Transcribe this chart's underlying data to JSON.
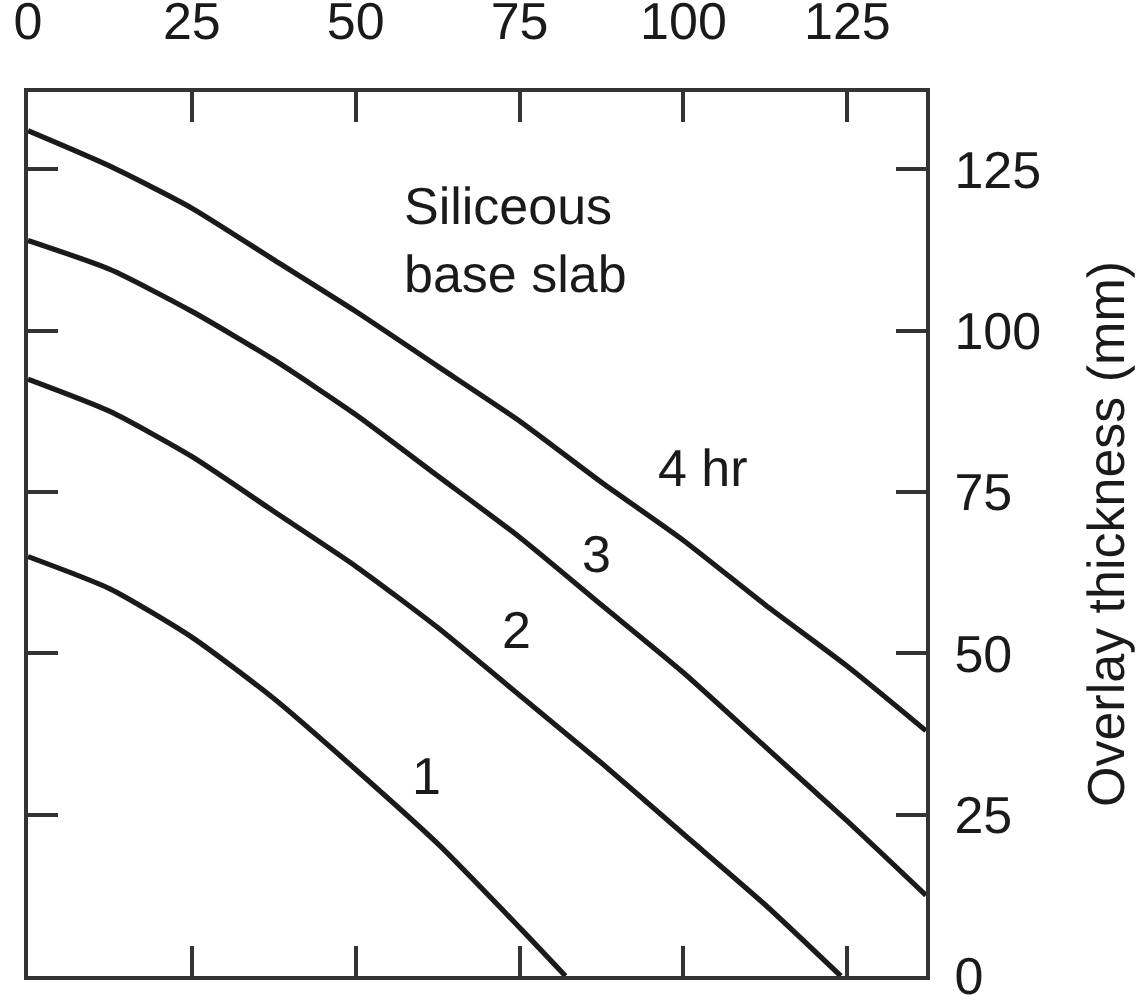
{
  "chart_data": {
    "type": "line",
    "ylabel": "Overlay thickness (mm)",
    "annotations": [
      "Siliceous\nbase slab"
    ],
    "xlim": [
      0,
      137
    ],
    "xticks": [
      0,
      25,
      50,
      75,
      100,
      125
    ],
    "ylim": [
      0,
      137
    ],
    "yticks": [
      0,
      25,
      50,
      75,
      100,
      125
    ],
    "series": [
      {
        "name": "1",
        "color": "#1a1a1a",
        "x": [
          0,
          12.5,
          25,
          37.5,
          50,
          62.5,
          75,
          82
        ],
        "values": [
          65,
          60,
          52.5,
          43,
          32,
          20.5,
          7.5,
          0
        ]
      },
      {
        "name": "2",
        "color": "#1a1a1a",
        "x": [
          0,
          12.5,
          25,
          37.5,
          50,
          62.5,
          75,
          87.5,
          100,
          112.5,
          124
        ],
        "values": [
          92.5,
          87.5,
          80.5,
          72,
          63.5,
          54,
          43.5,
          33,
          22,
          11,
          0
        ]
      },
      {
        "name": "3",
        "color": "#1a1a1a",
        "x": [
          0,
          12.5,
          25,
          37.5,
          50,
          62.5,
          75,
          87.5,
          100,
          112.5,
          125,
          137
        ],
        "values": [
          114,
          109.5,
          103,
          95.5,
          87,
          77.5,
          68,
          57.5,
          47,
          35.5,
          24,
          12.5
        ]
      },
      {
        "name": "4 hr",
        "color": "#1a1a1a",
        "x": [
          0,
          12.5,
          25,
          37.5,
          50,
          62.5,
          75,
          87.5,
          100,
          112.5,
          125,
          137
        ],
        "values": [
          131,
          125.5,
          119,
          111,
          103,
          94.5,
          86,
          76.5,
          67.5,
          57.5,
          48,
          38
        ]
      }
    ]
  }
}
